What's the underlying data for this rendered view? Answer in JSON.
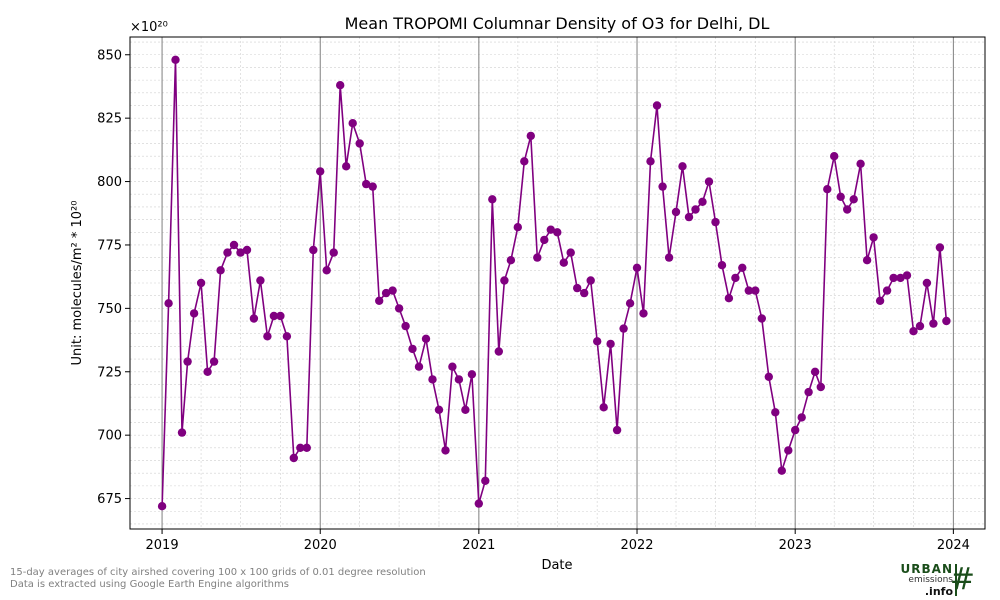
{
  "chart_data": {
    "type": "line",
    "title": "Mean TROPOMI Columnar Density of O3 for Delhi, DL",
    "xlabel": "Date",
    "ylabel": "Unit: molecules/m² * 10²⁰",
    "y_offset_label": "×10²⁰",
    "xlim": [
      "2018-10-19",
      "2024-03-14"
    ],
    "ylim": [
      663,
      857
    ],
    "yticks": [
      675,
      700,
      725,
      750,
      775,
      800,
      825,
      850
    ],
    "xticks": [
      "2019",
      "2020",
      "2021",
      "2022",
      "2023",
      "2024"
    ],
    "grid": true,
    "series_color": "#800080",
    "series": [
      {
        "x": [
          "2019-01-01",
          "2019-01-16",
          "2019-02-01",
          "2019-02-16",
          "2019-03-01",
          "2019-03-16",
          "2019-04-01",
          "2019-04-16",
          "2019-05-01",
          "2019-05-16",
          "2019-06-01",
          "2019-06-16",
          "2019-07-01",
          "2019-07-16",
          "2019-08-01",
          "2019-08-16",
          "2019-09-01",
          "2019-09-16",
          "2019-10-01",
          "2019-10-16",
          "2019-11-01",
          "2019-11-16",
          "2019-12-01",
          "2019-12-16",
          "2020-01-01",
          "2020-01-16",
          "2020-02-01",
          "2020-02-16",
          "2020-03-01",
          "2020-03-16",
          "2020-04-01",
          "2020-04-16",
          "2020-05-01",
          "2020-05-16",
          "2020-06-01",
          "2020-06-16",
          "2020-07-01",
          "2020-07-16",
          "2020-08-01",
          "2020-08-16",
          "2020-09-01",
          "2020-09-16",
          "2020-10-01",
          "2020-10-16",
          "2020-11-01",
          "2020-11-16",
          "2020-12-01",
          "2020-12-16",
          "2021-01-01",
          "2021-01-16",
          "2021-02-01",
          "2021-02-16",
          "2021-03-01",
          "2021-03-16",
          "2021-04-01",
          "2021-04-16",
          "2021-05-01",
          "2021-05-16",
          "2021-06-01",
          "2021-06-16",
          "2021-07-01",
          "2021-07-16",
          "2021-08-01",
          "2021-08-16",
          "2021-09-01",
          "2021-09-16",
          "2021-10-01",
          "2021-10-16",
          "2021-11-01",
          "2021-11-16",
          "2021-12-01",
          "2021-12-16",
          "2022-01-01",
          "2022-01-16",
          "2022-02-01",
          "2022-02-16",
          "2022-03-01",
          "2022-03-16",
          "2022-04-01",
          "2022-04-16",
          "2022-05-01",
          "2022-05-16",
          "2022-06-01",
          "2022-06-16",
          "2022-07-01",
          "2022-07-16",
          "2022-08-01",
          "2022-08-16",
          "2022-09-01",
          "2022-09-16",
          "2022-10-01",
          "2022-10-16",
          "2022-11-01",
          "2022-11-16",
          "2022-12-01",
          "2022-12-16",
          "2023-01-01",
          "2023-01-16",
          "2023-02-01",
          "2023-02-16",
          "2023-03-01",
          "2023-03-16",
          "2023-04-01",
          "2023-04-16",
          "2023-05-01",
          "2023-05-16",
          "2023-06-01",
          "2023-06-16",
          "2023-07-01",
          "2023-07-16",
          "2023-08-01",
          "2023-08-16",
          "2023-09-01",
          "2023-09-16",
          "2023-10-01",
          "2023-10-16",
          "2023-11-01",
          "2023-11-16",
          "2023-12-01",
          "2023-12-16"
        ],
        "y": [
          672,
          752,
          848,
          701,
          729,
          748,
          760,
          725,
          729,
          765,
          772,
          775,
          772,
          773,
          746,
          761,
          739,
          747,
          747,
          739,
          691,
          695,
          695,
          773,
          804,
          765,
          772,
          838,
          806,
          823,
          815,
          799,
          798,
          753,
          756,
          757,
          750,
          743,
          734,
          727,
          738,
          722,
          710,
          694,
          727,
          722,
          710,
          724,
          673,
          682,
          793,
          733,
          761,
          769,
          782,
          808,
          818,
          770,
          777,
          781,
          780,
          768,
          772,
          758,
          756,
          761,
          737,
          711,
          736,
          702,
          742,
          752,
          766,
          748,
          808,
          830,
          798,
          770,
          788,
          806,
          786,
          789,
          792,
          800,
          784,
          767,
          754,
          762,
          766,
          757,
          757,
          746,
          723,
          709,
          686,
          694,
          702,
          707,
          717,
          725,
          719,
          797,
          810,
          794,
          789,
          793,
          807,
          769,
          778,
          753,
          757,
          762,
          762,
          763,
          741,
          743,
          760,
          744,
          774,
          745
        ]
      }
    ]
  },
  "footnote": {
    "line1": "15-day averages of city airshed covering 100 x 100 grids of 0.01 degree resolution",
    "line2": "Data is extracted using Google Earth Engine algorithms"
  },
  "logo": {
    "word1": "URBAN",
    "word2": "emissions",
    "word3": ".info",
    "icon": "hash-grid-icon",
    "color": "#1a4d1a"
  }
}
